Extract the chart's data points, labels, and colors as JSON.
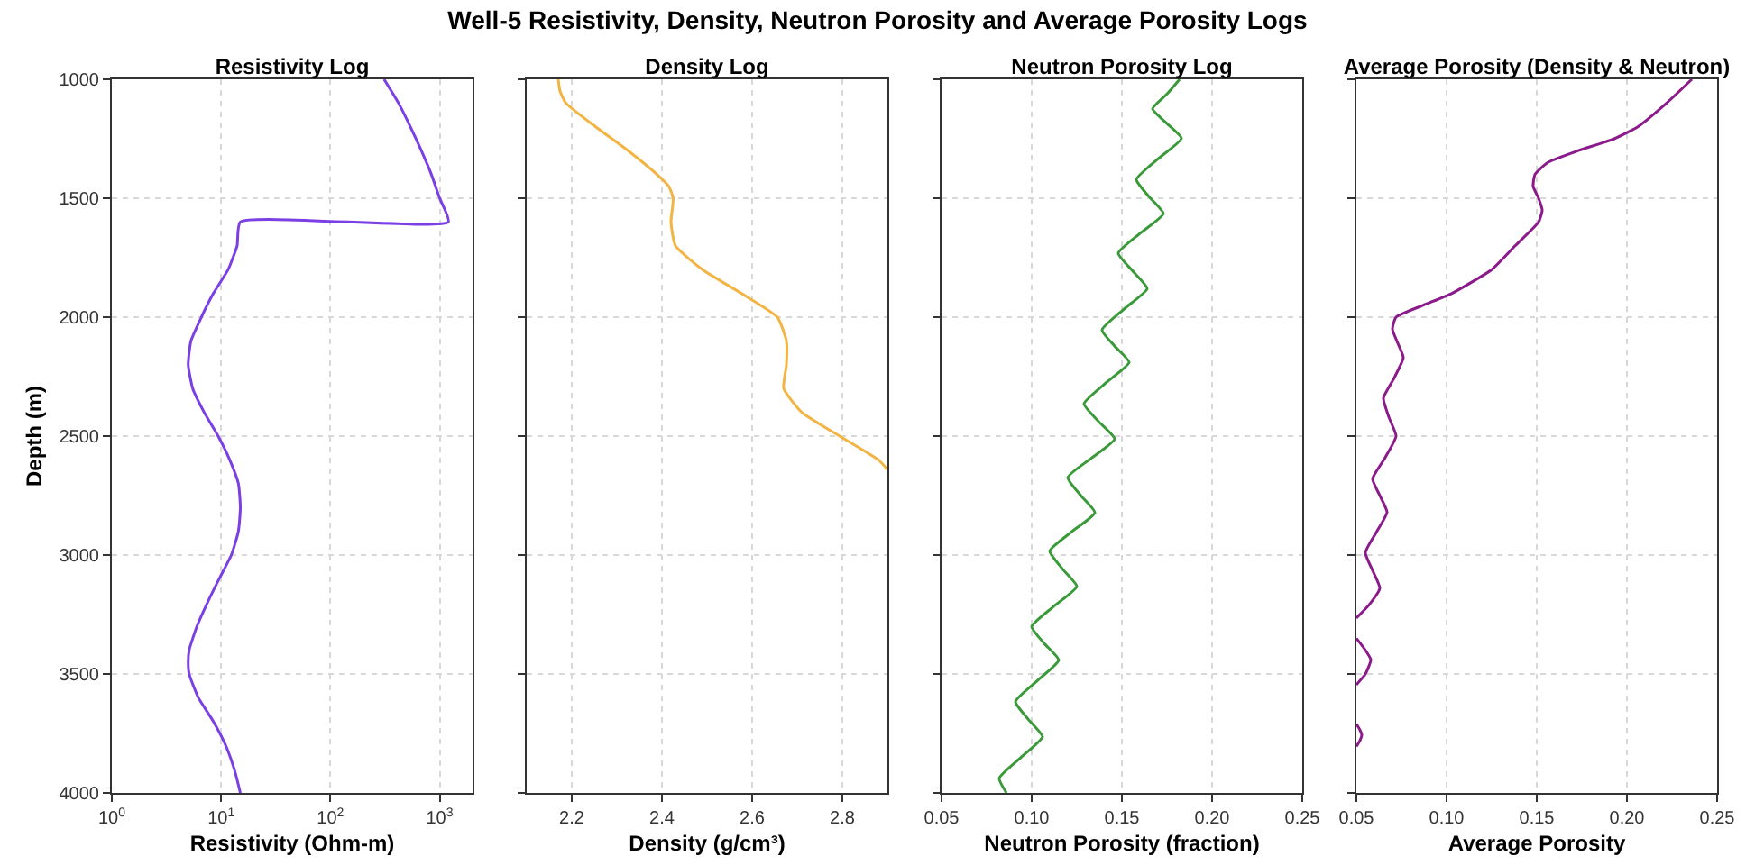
{
  "chart_data": [
    {
      "type": "other",
      "title": "Well-5 Resistivity, Density, Neutron Porosity and Average Porosity Logs"
    },
    {
      "type": "line",
      "title": "Resistivity Log",
      "xlabel": "Resistivity (Ohm-m)",
      "ylabel": "Depth (m)",
      "log": "x",
      "grid": true,
      "xlim": [
        1,
        2000
      ],
      "xticks": [
        {
          "value": 1,
          "label": "10$^{0}$"
        },
        {
          "value": 10,
          "label": "10$^{1}$"
        },
        {
          "value": 100,
          "label": "10$^{2}$"
        },
        {
          "value": 1000,
          "label": "10$^{3}$"
        }
      ],
      "ylim": [
        4000,
        1000
      ],
      "yticks": [
        1000,
        1500,
        2000,
        2500,
        3000,
        3500,
        4000
      ],
      "series": [
        {
          "color": "#7b3fe4",
          "x": [
            310,
            420,
            540,
            680,
            840,
            1000,
            1200,
            15,
            14,
            11.6,
            8.5,
            6.6,
            5.3,
            5.0,
            5.5,
            7.0,
            9.4,
            12,
            14.4,
            15,
            14.4,
            12.4,
            9.6,
            7.5,
            6.0,
            5.1,
            5.0,
            5.1,
            6.2,
            8.5,
            11,
            13.2,
            15
          ],
          "values": [
            1000,
            1100,
            1200,
            1300,
            1400,
            1500,
            1600,
            1600,
            1700,
            1800,
            1900,
            2000,
            2100,
            2200,
            2300,
            2400,
            2500,
            2600,
            2700,
            2800,
            2900,
            3000,
            3100,
            3200,
            3300,
            3400,
            3450,
            3500,
            3600,
            3700,
            3800,
            3900,
            4000
          ]
        }
      ]
    },
    {
      "type": "line",
      "title": "Density Log",
      "xlabel": "Density (g/cm³)",
      "grid": true,
      "tick_labels": "x",
      "xlim": [
        2.1,
        2.9
      ],
      "xticks": [
        2.2,
        2.4,
        2.6,
        2.8
      ],
      "ylim": [
        4000,
        1000
      ],
      "yticks": [
        1000,
        1500,
        2000,
        2500,
        3000,
        3500,
        4000
      ],
      "series": [
        {
          "color": "#f2b443",
          "x": [
            2.17,
            2.174,
            2.187,
            2.253,
            2.325,
            2.389,
            2.415,
            2.425,
            2.42,
            2.43,
            2.49,
            2.576,
            2.656,
            2.676,
            2.676,
            2.67,
            2.71,
            2.794,
            2.88,
            2.9
          ],
          "values": [
            1000,
            1050,
            1100,
            1200,
            1300,
            1400,
            1450,
            1500,
            1600,
            1700,
            1800,
            1900,
            2000,
            2100,
            2200,
            2300,
            2400,
            2500,
            2600,
            2640
          ]
        }
      ]
    },
    {
      "type": "line",
      "title": "Neutron Porosity Log",
      "xlabel": "Neutron Porosity (fraction)",
      "grid": true,
      "tick_labels": "x",
      "xlim": [
        0.05,
        0.25
      ],
      "xticks": [
        {
          "value": 0.05,
          "label": "0.05"
        },
        {
          "value": 0.1,
          "label": "0.10"
        },
        {
          "value": 0.15,
          "label": "0.15"
        },
        {
          "value": 0.2,
          "label": "0.20"
        },
        {
          "value": 0.25,
          "label": "0.25"
        }
      ],
      "ylim": [
        4000,
        1000
      ],
      "yticks": [
        1000,
        1500,
        2000,
        2500,
        3000,
        3500,
        4000
      ],
      "series": [
        {
          "color": "#3a9a3a",
          "x": [
            0.182,
            0.175,
            0.167,
            0.175,
            0.183,
            0.17,
            0.158,
            0.165,
            0.173,
            0.16,
            0.148,
            0.156,
            0.164,
            0.151,
            0.139,
            0.146,
            0.154,
            0.141,
            0.129,
            0.137,
            0.146,
            0.133,
            0.12,
            0.127,
            0.135,
            0.122,
            0.11,
            0.117,
            0.125,
            0.112,
            0.1,
            0.107,
            0.115,
            0.103,
            0.091,
            0.098,
            0.106,
            0.094,
            0.082,
            0.086
          ],
          "values": [
            1000,
            1062,
            1124,
            1186,
            1248,
            1335,
            1421,
            1493,
            1565,
            1648,
            1731,
            1806,
            1880,
            1967,
            2054,
            2122,
            2190,
            2277,
            2364,
            2438,
            2512,
            2593,
            2674,
            2748,
            2822,
            2903,
            2983,
            3058,
            3132,
            3217,
            3301,
            3372,
            3442,
            3529,
            3616,
            3690,
            3764,
            3851,
            3938,
            4000
          ]
        }
      ]
    },
    {
      "type": "line",
      "title": "Average Porosity (Density & Neutron)",
      "xlabel": "Average Porosity",
      "grid": true,
      "tick_labels": "x",
      "xlim": [
        0.05,
        0.25
      ],
      "xticks": [
        {
          "value": 0.05,
          "label": "0.05"
        },
        {
          "value": 0.1,
          "label": "0.10"
        },
        {
          "value": 0.15,
          "label": "0.15"
        },
        {
          "value": 0.2,
          "label": "0.20"
        },
        {
          "value": 0.25,
          "label": "0.25"
        }
      ],
      "ylim": [
        4000,
        1000
      ],
      "yticks": [
        1000,
        1500,
        2000,
        2500,
        3000,
        3500,
        4000
      ],
      "series": [
        {
          "color": "#8b1a8b",
          "x": [
            0.236,
            0.222,
            0.206,
            0.193,
            0.173,
            0.156,
            0.149,
            0.148,
            0.151,
            0.153,
            0.151,
            0.138,
            0.125,
            0.103,
            0.087,
            0.072,
            0.07,
            0.073,
            0.076,
            0.071,
            0.065,
            0.068,
            0.072,
            0.066,
            0.059,
            0.063,
            0.067,
            0.061,
            0.055,
            0.059,
            0.063,
            0.057,
            0.05,
            null,
            0.05,
            0.055,
            0.058,
            0.055,
            0.05
          ],
          "values": [
            1000,
            1100,
            1200,
            1250,
            1300,
            1350,
            1400,
            1450,
            1500,
            1550,
            1600,
            1700,
            1800,
            1900,
            1950,
            2000,
            2050,
            2110,
            2170,
            2255,
            2340,
            2420,
            2500,
            2590,
            2680,
            2750,
            2820,
            2905,
            2990,
            3065,
            3140,
            3210,
            3265,
            null,
            3350,
            3400,
            3440,
            3500,
            3545
          ]
        },
        {
          "color": "#8b1a8b",
          "x": [
            0.05,
            0.052,
            0.053,
            0.052,
            0.05
          ],
          "values": [
            3710,
            3735,
            3757,
            3780,
            3805
          ]
        }
      ]
    }
  ]
}
